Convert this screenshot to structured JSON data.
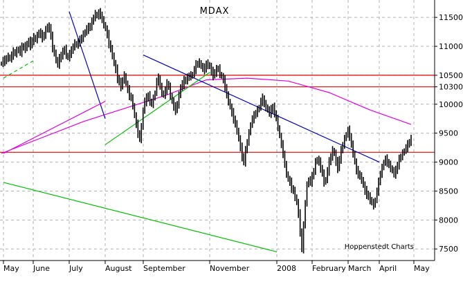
{
  "chart_data": {
    "type": "candlestick",
    "title": "MDAX",
    "credit": "Hoppenstedt Charts",
    "y_axis": {
      "position": "right",
      "ylim": [
        7300,
        11800
      ],
      "ticks": [
        7500,
        8000,
        8500,
        9000,
        9500,
        10000,
        10300,
        10500,
        11000,
        11500
      ],
      "tick_labels": [
        "7500",
        "8000",
        "8500",
        "9000",
        "9500",
        "10000",
        "10300",
        "10500",
        "11000",
        "11500"
      ]
    },
    "x_axis": {
      "labels": [
        "May",
        "June",
        "July",
        "August",
        "September",
        "November",
        "2008",
        "February",
        "March",
        "April",
        "May"
      ]
    },
    "grid": true,
    "horizontal_levels": [
      10500,
      10300,
      9170
    ],
    "series": [
      {
        "kind": "ohlc_daily",
        "color": "#000000",
        "close": [
          10700,
          10760,
          10740,
          10800,
          10820,
          10780,
          10850,
          10900,
          10880,
          10920,
          10950,
          10900,
          10980,
          11000,
          10960,
          11050,
          11080,
          11020,
          11100,
          11150,
          11120,
          11180,
          11250,
          11200,
          11150,
          11200,
          11280,
          11350,
          11300,
          11200,
          10950,
          10900,
          10750,
          10700,
          10780,
          10850,
          10900,
          10960,
          10850,
          10800,
          10880,
          10920,
          11000,
          11050,
          11020,
          11080,
          11100,
          11150,
          11200,
          11250,
          11300,
          11320,
          11350,
          11420,
          11500,
          11560,
          11520,
          11580,
          11550,
          11450,
          11380,
          11300,
          11200,
          11050,
          10950,
          10850,
          10700,
          10600,
          10450,
          10380,
          10300,
          10420,
          10500,
          10350,
          10250,
          10150,
          10100,
          9980,
          9800,
          9650,
          9500,
          9400,
          9600,
          9900,
          10050,
          10100,
          10150,
          10050,
          10000,
          10100,
          10200,
          10400,
          10450,
          10300,
          10200,
          10150,
          10250,
          10350,
          10300,
          10150,
          10050,
          9950,
          9900,
          10000,
          10150,
          10300,
          10350,
          10400,
          10420,
          10450,
          10500,
          10480,
          10520,
          10600,
          10680,
          10700,
          10720,
          10650,
          10620,
          10600,
          10700,
          10680,
          10650,
          10560,
          10500,
          10550,
          10600,
          10620,
          10520,
          10480,
          10420,
          10300,
          10150,
          10050,
          9950,
          9850,
          9750,
          9650,
          9550,
          9400,
          9250,
          9100,
          9000,
          9200,
          9350,
          9500,
          9650,
          9750,
          9800,
          9850,
          9900,
          9950,
          10050,
          10100,
          10000,
          9950,
          9900,
          9850,
          9900,
          9950,
          9850,
          9750,
          9600,
          9450,
          9300,
          9150,
          8950,
          8800,
          8700,
          8650,
          8550,
          8500,
          8400,
          8300,
          8100,
          7800,
          7500,
          7900,
          8300,
          8600,
          8700,
          8650,
          8750,
          8850,
          9000,
          9050,
          9000,
          8900,
          8800,
          8650,
          8700,
          8850,
          9000,
          9100,
          9200,
          9150,
          9000,
          8900,
          9050,
          9200,
          9300,
          9400,
          9480,
          9550,
          9450,
          9300,
          9150,
          9000,
          8850,
          8800,
          8750,
          8700,
          8600,
          8500,
          8450,
          8400,
          8350,
          8300,
          8250,
          8350,
          8500,
          8650,
          8800,
          8900,
          9000,
          9050,
          9000,
          8950,
          8900,
          8850,
          8800,
          8850,
          8950,
          9050,
          9100,
          9150,
          9200,
          9250,
          9300,
          9350,
          9400
        ]
      },
      {
        "kind": "moving_average",
        "color": "#e000e0",
        "x_frac": [
          0.0,
          0.2,
          0.4,
          0.5,
          0.6,
          0.7,
          0.8,
          0.9,
          1.0
        ],
        "values": [
          9150,
          9700,
          10150,
          10420,
          10450,
          10400,
          10200,
          9900,
          9650
        ]
      }
    ],
    "trendlines": [
      {
        "color": "#0000c0",
        "from": [
          "July",
          11600
        ],
        "to": [
          "August",
          9750
        ]
      },
      {
        "color": "#0000c0",
        "from": [
          "September",
          10850
        ],
        "to": [
          "April",
          9000
        ]
      },
      {
        "color": "#00c000",
        "from": [
          "May",
          10450
        ],
        "to": [
          "June",
          10750
        ],
        "style": "dashed"
      },
      {
        "color": "#00c000",
        "from": [
          "August",
          9300
        ],
        "to": [
          "November",
          10550
        ]
      },
      {
        "color": "#00c000",
        "from": [
          "2008",
          7450
        ],
        "to": [
          "May",
          8650
        ]
      },
      {
        "color": "#e000e0",
        "from": [
          "May",
          9150
        ],
        "to": [
          "August",
          10050
        ]
      }
    ]
  }
}
